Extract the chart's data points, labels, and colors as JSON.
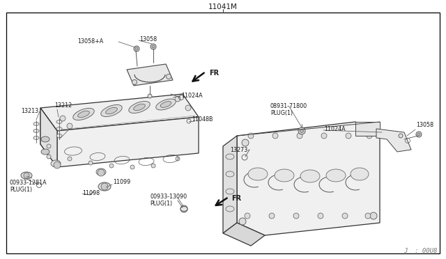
{
  "title": "11041M",
  "watermark": "J  : 00U8",
  "bg_color": "#ffffff",
  "border_color": "#000000",
  "line_color": "#555555",
  "text_color": "#1a1a1a",
  "labels": {
    "fr_top": "FR",
    "fr_bottom": "FR",
    "part_13058A": "13058+A",
    "part_13058_top": "13058",
    "part_13213": "13213",
    "part_13212": "13212",
    "part_11024A_left": "11024A",
    "part_11048B": "11048B",
    "part_00933_1281A": "00933-1281A\nPLUG(1)",
    "part_11099": "11099",
    "part_11098": "11098",
    "part_00933_13090": "00933-13090\nPLUG(1)",
    "part_08931_71800": "08931-71800\nPLUG(1)",
    "part_13273": "13273",
    "part_11024A_right": "11024A",
    "part_13058_right": "13058"
  },
  "font_size_label": 5.8,
  "font_size_title": 7.5,
  "font_size_watermark": 6.5,
  "font_size_fr": 7.0
}
